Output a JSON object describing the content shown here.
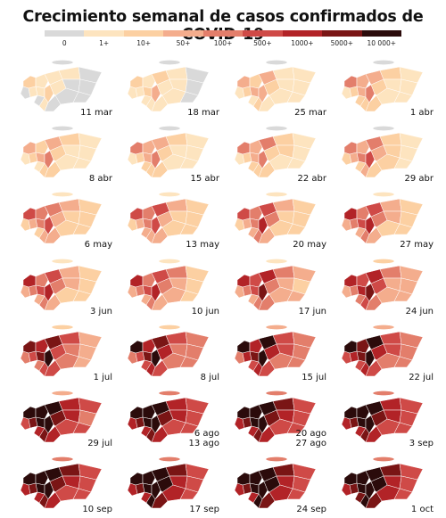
{
  "title": "Crecimiento semanal de casos confirmados de COVID-19",
  "legend": {
    "bins": [
      {
        "label": "0",
        "color": "#d9d9d9"
      },
      {
        "label": "1+",
        "color": "#fde4bf"
      },
      {
        "label": "10+",
        "color": "#fcd0a2"
      },
      {
        "label": "50+",
        "color": "#f4ad8d"
      },
      {
        "label": "100+",
        "color": "#e37e6b"
      },
      {
        "label": "500+",
        "color": "#cf4a47"
      },
      {
        "label": "1000+",
        "color": "#b22327"
      },
      {
        "label": "5000+",
        "color": "#7a1515"
      },
      {
        "label": "10 000+",
        "color": "#2b0b0b"
      }
    ]
  },
  "maps": [
    {
      "labels": [
        "11 mar"
      ],
      "level": 0.06
    },
    {
      "labels": [
        "18 mar"
      ],
      "level": 0.12
    },
    {
      "labels": [
        "25 mar"
      ],
      "level": 0.18
    },
    {
      "labels": [
        "1 abr"
      ],
      "level": 0.22
    },
    {
      "labels": [
        "8 abr"
      ],
      "level": 0.2
    },
    {
      "labels": [
        "15 abr"
      ],
      "level": 0.22
    },
    {
      "labels": [
        "22 abr"
      ],
      "level": 0.24
    },
    {
      "labels": [
        "29 abr"
      ],
      "level": 0.27
    },
    {
      "labels": [
        "6 may"
      ],
      "level": 0.32
    },
    {
      "labels": [
        "13 may"
      ],
      "level": 0.33
    },
    {
      "labels": [
        "20 may"
      ],
      "level": 0.34
    },
    {
      "labels": [
        "27 may"
      ],
      "level": 0.38
    },
    {
      "labels": [
        "3 jun"
      ],
      "level": 0.38
    },
    {
      "labels": [
        "10 jun"
      ],
      "level": 0.4
    },
    {
      "labels": [
        "17 jun"
      ],
      "level": 0.42
    },
    {
      "labels": [
        "24 jun"
      ],
      "level": 0.45
    },
    {
      "labels": [
        "1 jul"
      ],
      "level": 0.52
    },
    {
      "labels": [
        "8 jul"
      ],
      "level": 0.56
    },
    {
      "labels": [
        "15 jul"
      ],
      "level": 0.58
    },
    {
      "labels": [
        "22 jul"
      ],
      "level": 0.6
    },
    {
      "labels": [
        "29 jul"
      ],
      "level": 0.68
    },
    {
      "labels": [
        "6 ago",
        "13 ago"
      ],
      "level": 0.7
    },
    {
      "labels": [
        "20 ago",
        "27 ago"
      ],
      "level": 0.72
    },
    {
      "labels": [
        "3 sep"
      ],
      "level": 0.7
    },
    {
      "labels": [
        "10 sep"
      ],
      "level": 0.72
    },
    {
      "labels": [
        "17 sep"
      ],
      "level": 0.74
    },
    {
      "labels": [
        "24 sep"
      ],
      "level": 0.75
    },
    {
      "labels": [
        "1 oct"
      ],
      "level": 0.76
    }
  ]
}
